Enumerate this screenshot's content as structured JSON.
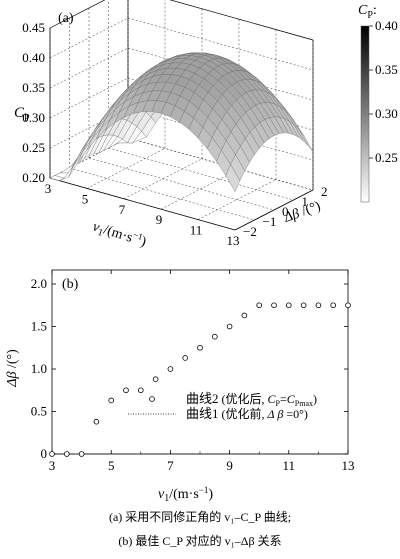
{
  "chart_data": [
    {
      "panel": "(a)",
      "type": "surface",
      "xlabel": "v₁/(m·s⁻¹)",
      "ylabel": "Δβ /(°)",
      "zlabel": "C_P",
      "x_ticks": [
        "3",
        "5",
        "7",
        "9",
        "11",
        "13"
      ],
      "y_ticks": [
        "−2",
        "−1",
        "0",
        "1",
        "2"
      ],
      "z_ticks": [
        "0.20",
        "0.25",
        "0.30",
        "0.35",
        "0.40",
        "0.45"
      ],
      "xlim": [
        3,
        13
      ],
      "ylim": [
        -2,
        2
      ],
      "zlim": [
        0.2,
        0.45
      ],
      "surface_model": {
        "peak": 0.42,
        "peak_v1": 9,
        "falloff_v1": 0.12,
        "falloff_beta": 0.0025,
        "floor": 0.2
      },
      "colorbar": {
        "label": "C_P:",
        "ticks": [
          "0.40",
          "0.35",
          "0.30",
          "0.25"
        ],
        "range": [
          0.2,
          0.4
        ],
        "color_high": "#000000",
        "color_low": "#ffffff"
      }
    },
    {
      "panel": "(b)",
      "type": "scatter",
      "xlabel": "v₁/(m·s⁻¹)",
      "ylabel": "Δβ /(°)",
      "xlim": [
        3,
        13
      ],
      "ylim": [
        0,
        2.0
      ],
      "x_ticks": [
        "3",
        "5",
        "7",
        "9",
        "11",
        "13"
      ],
      "y_ticks": [
        "0",
        "0.5",
        "1.0",
        "1.5",
        "2.0"
      ],
      "series": [
        {
          "name": "曲线2 (优化后, C_P=C_Pmax)",
          "marker": "circle",
          "x": [
            3,
            3.5,
            4,
            4.5,
            5,
            5.5,
            6,
            6.5,
            7,
            7.5,
            8,
            8.5,
            9,
            9.5,
            10,
            10.5,
            11,
            11.5,
            12,
            12.5,
            13
          ],
          "y": [
            0,
            0,
            0,
            0.38,
            0.63,
            0.75,
            0.75,
            0.88,
            1.0,
            1.13,
            1.25,
            1.38,
            1.5,
            1.63,
            1.75,
            1.75,
            1.75,
            1.75,
            1.75,
            1.75,
            1.75
          ]
        },
        {
          "name": "曲线1 (优化前, Δβ =0°)",
          "marker": "dotted-line",
          "x": [
            3,
            13
          ],
          "y": [
            0,
            0
          ]
        }
      ]
    }
  ],
  "captions": {
    "a": "(a)  采用不同修正角的 v₁–C_P 曲线;",
    "b": "(b)  最佳 C_P 对应的 v₁–Δβ 关系"
  }
}
